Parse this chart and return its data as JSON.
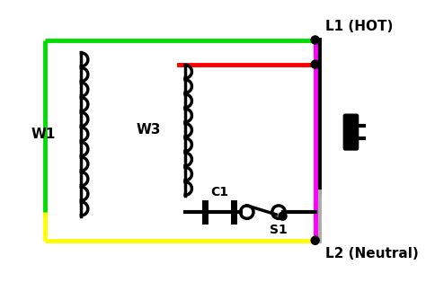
{
  "bg_color": "#ffffff",
  "title": "",
  "figsize": [
    4.74,
    3.24
  ],
  "dpi": 100,
  "labels": {
    "L1": "L1 (HOT)",
    "L2": "L2 (Neutral)",
    "W1": "W1",
    "W3": "W3",
    "C1": "C1",
    "S1": "S1"
  },
  "colors": {
    "green": "#00dd00",
    "yellow": "#ffff00",
    "red": "#ff0000",
    "magenta": "#ff00ff",
    "black": "#000000",
    "gray": "#aaaaaa",
    "dot": "#000000"
  }
}
